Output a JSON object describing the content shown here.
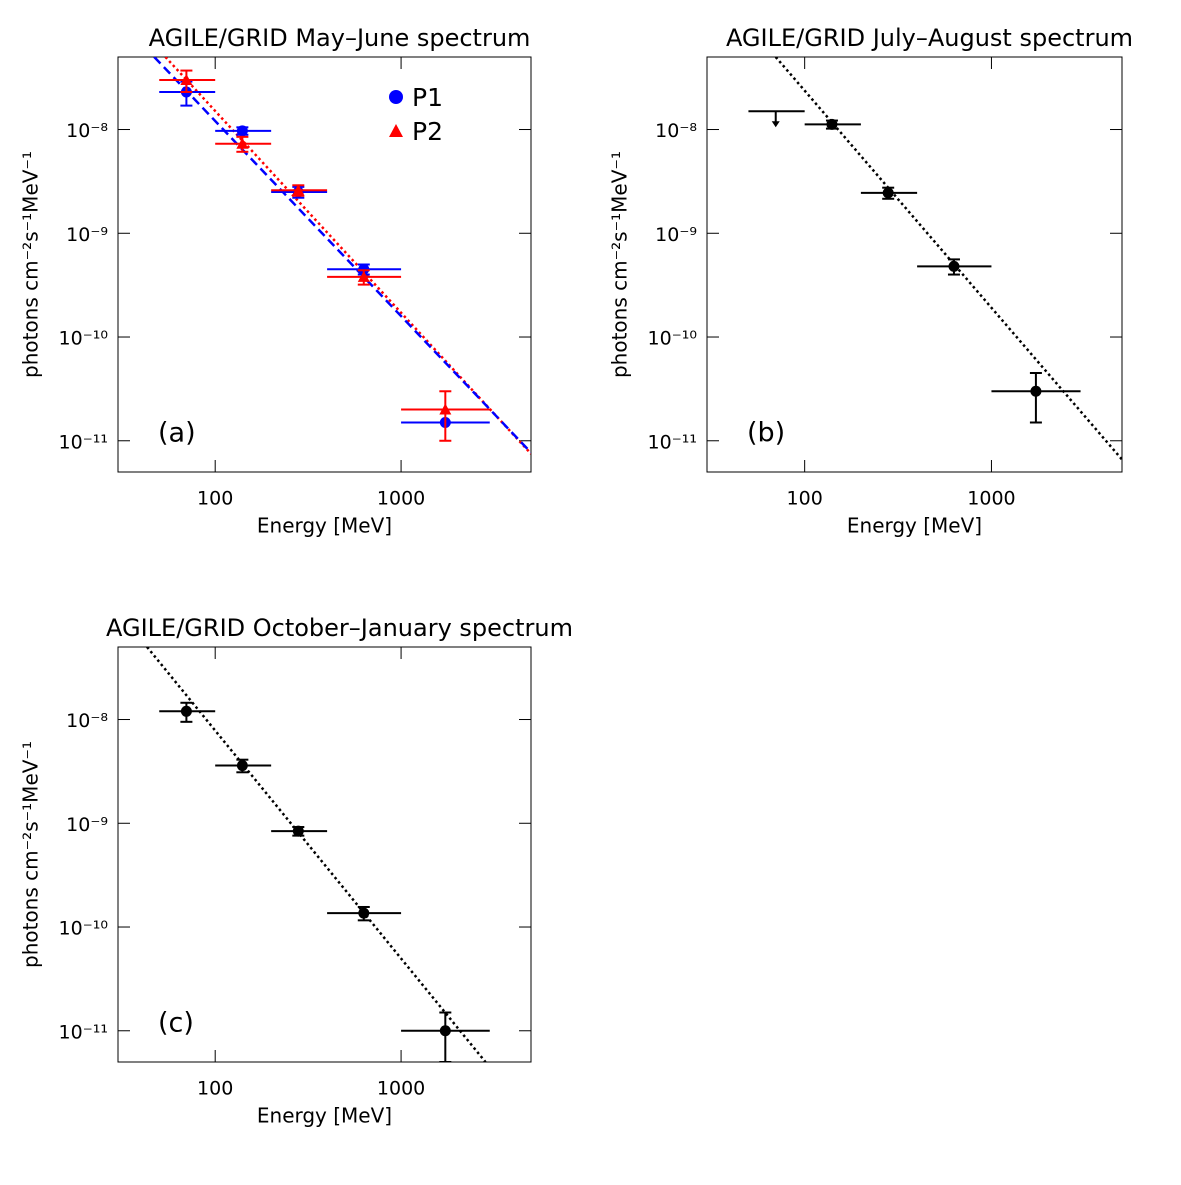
{
  "chart_data": [
    {
      "type": "scatter",
      "title": "AGILE/GRID May–June spectrum",
      "annotation": "(a)",
      "x_label": "Energy [MeV]",
      "y_label": "photons cm⁻²s⁻¹MeV⁻¹",
      "xscale": "log",
      "yscale": "log",
      "xlim": [
        30,
        5000
      ],
      "ylim": [
        5e-12,
        5e-08
      ],
      "xticks": [
        100,
        1000
      ],
      "yticks": [
        {
          "value": 1e-11,
          "label": "10⁻¹¹"
        },
        {
          "value": 1e-10,
          "label": "10⁻¹⁰"
        },
        {
          "value": 1e-09,
          "label": "10⁻⁹"
        },
        {
          "value": 1e-08,
          "label": "10⁻⁸"
        }
      ],
      "legend": "upper right",
      "series": [
        {
          "name": "P1",
          "color": "#0000ff",
          "marker": "circle",
          "x": [
            70,
            140,
            280,
            630,
            1730
          ],
          "x_low": [
            50,
            100,
            200,
            400,
            1000
          ],
          "x_high": [
            100,
            200,
            400,
            1000,
            3000
          ],
          "values": [
            2.3e-08,
            9.7e-09,
            2.5e-09,
            4.5e-10,
            1.5e-11
          ],
          "errors": [
            6e-09,
            8e-10,
            3e-10,
            5e-11,
            null
          ]
        },
        {
          "name": "P2",
          "color": "#ff0000",
          "marker": "triangle",
          "x": [
            70,
            140,
            280,
            630,
            1730
          ],
          "x_low": [
            50,
            100,
            200,
            400,
            1000
          ],
          "x_high": [
            100,
            200,
            400,
            1000,
            3000
          ],
          "values": [
            3e-08,
            7.3e-09,
            2.6e-09,
            3.8e-10,
            2e-11
          ],
          "errors": [
            7e-09,
            1.2e-09,
            3e-10,
            6e-11,
            1e-11
          ]
        }
      ],
      "fits": [
        {
          "color": "#ff0000",
          "dash": "dotted",
          "x": [
            54,
            5000
          ],
          "values": [
            5e-08,
            7.5e-12
          ]
        },
        {
          "color": "#0000ff",
          "dash": "dashed",
          "x": [
            47,
            5000
          ],
          "values": [
            5e-08,
            7.7e-12
          ]
        }
      ]
    },
    {
      "type": "scatter",
      "title": "AGILE/GRID July–August spectrum",
      "annotation": "(b)",
      "x_label": "Energy [MeV]",
      "y_label": "photons cm⁻²s⁻¹MeV⁻¹",
      "xscale": "log",
      "yscale": "log",
      "xlim": [
        30,
        5000
      ],
      "ylim": [
        5e-12,
        5e-08
      ],
      "xticks": [
        100,
        1000
      ],
      "yticks": [
        {
          "value": 1e-11,
          "label": "10⁻¹¹"
        },
        {
          "value": 1e-10,
          "label": "10⁻¹⁰"
        },
        {
          "value": 1e-09,
          "label": "10⁻⁹"
        },
        {
          "value": 1e-08,
          "label": "10⁻⁸"
        }
      ],
      "series": [
        {
          "color": "#000000",
          "marker": "circle",
          "x": [
            140,
            280,
            630,
            1730
          ],
          "x_low": [
            100,
            200,
            400,
            1000
          ],
          "x_high": [
            200,
            400,
            1000,
            3000
          ],
          "values": [
            1.12e-08,
            2.45e-09,
            4.8e-10,
            3e-11
          ],
          "errors": [
            1e-09,
            3e-10,
            8e-11,
            1.5e-11
          ]
        }
      ],
      "upper_limits": {
        "color": "#000000",
        "x": [
          70
        ],
        "x_low": [
          50
        ],
        "x_high": [
          100
        ],
        "values": [
          1.5e-08
        ]
      },
      "fits": [
        {
          "color": "#000000",
          "dash": "dotted",
          "x": [
            70,
            5000
          ],
          "values": [
            5e-08,
            6.6e-12
          ]
        }
      ]
    },
    {
      "type": "scatter",
      "title": "AGILE/GRID October–January spectrum",
      "annotation": "(c)",
      "x_label": "Energy [MeV]",
      "y_label": "photons cm⁻²s⁻¹MeV⁻¹",
      "xscale": "log",
      "yscale": "log",
      "xlim": [
        30,
        5000
      ],
      "ylim": [
        5e-12,
        5e-08
      ],
      "xticks": [
        100,
        1000
      ],
      "yticks": [
        {
          "value": 1e-11,
          "label": "10⁻¹¹"
        },
        {
          "value": 1e-10,
          "label": "10⁻¹⁰"
        },
        {
          "value": 1e-09,
          "label": "10⁻⁹"
        },
        {
          "value": 1e-08,
          "label": "10⁻⁸"
        }
      ],
      "series": [
        {
          "color": "#000000",
          "marker": "circle",
          "x": [
            70,
            140,
            280,
            630,
            1730
          ],
          "x_low": [
            50,
            100,
            200,
            400,
            1000
          ],
          "x_high": [
            100,
            200,
            400,
            1000,
            3000
          ],
          "values": [
            1.2e-08,
            3.6e-09,
            8.4e-10,
            1.36e-10,
            1e-11
          ],
          "errors": [
            2.5e-09,
            5e-10,
            8e-11,
            2e-11,
            5e-12
          ]
        }
      ],
      "fits": [
        {
          "color": "#000000",
          "dash": "dotted",
          "x": [
            43,
            2845
          ],
          "values": [
            5e-08,
            5e-12
          ]
        }
      ]
    }
  ]
}
